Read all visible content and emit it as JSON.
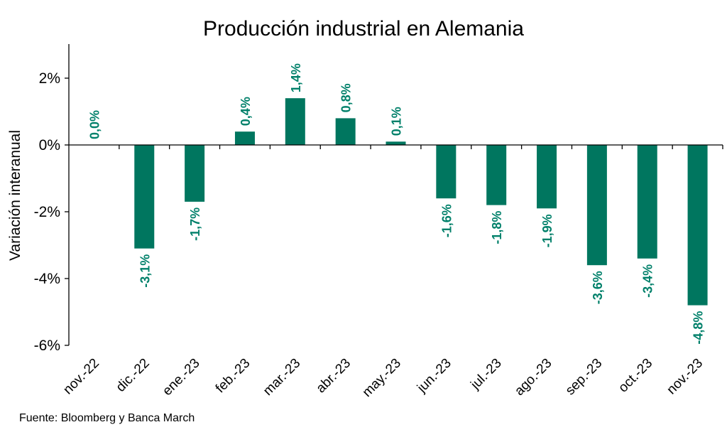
{
  "chart_data": {
    "type": "bar",
    "title": "Producción industrial en Alemania",
    "xlabel": "",
    "ylabel": "Variación interanual",
    "ylim": [
      -6,
      3
    ],
    "yticks": [
      2,
      0,
      -2,
      -4,
      -6
    ],
    "ytick_labels": [
      "2%",
      "0%",
      "-2%",
      "-4%",
      "-6%"
    ],
    "categories": [
      "nov.-22",
      "dic.-22",
      "ene.-23",
      "feb.-23",
      "mar.-23",
      "abr.-23",
      "may.-23",
      "jun.-23",
      "jul.-23",
      "ago.-23",
      "sep.-23",
      "oct.-23",
      "nov.-23"
    ],
    "values": [
      0.0,
      -3.1,
      -1.7,
      0.4,
      1.4,
      0.8,
      0.1,
      -1.6,
      -1.8,
      -1.9,
      -3.6,
      -3.4,
      -4.8
    ],
    "data_labels": [
      "0,0%",
      "-3,1%",
      "-1,7%",
      "0,4%",
      "1,4%",
      "0,8%",
      "0,1%",
      "-1,6%",
      "-1,8%",
      "-1,9%",
      "-3,6%",
      "-3,4%",
      "-4,8%"
    ],
    "grid": false,
    "legend": "none",
    "bar_color": "#00765F",
    "label_color": "#00806A"
  },
  "source": "Fuente: Bloomberg y Banca March"
}
